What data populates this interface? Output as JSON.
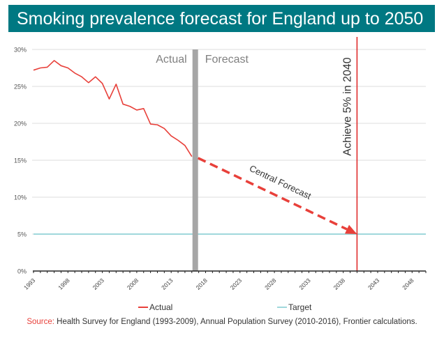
{
  "title": "Smoking prevalence forecast for England up to 2050",
  "colors": {
    "title_bg": "#007882",
    "actual": "#e8403a",
    "target": "#9fd8dc",
    "divider": "#a6a6a6",
    "milestone": "#e02b2b",
    "forecast_arrow": "#e8403a",
    "grid": "#e3e3e3"
  },
  "chart_data": {
    "type": "line",
    "title": "Smoking prevalence forecast for England up to 2050",
    "xlabel": "",
    "ylabel": "",
    "xlim": [
      1993,
      2050
    ],
    "ylim": [
      0,
      30
    ],
    "yticks": [
      0,
      5,
      10,
      15,
      20,
      25,
      30
    ],
    "ytick_labels": [
      "0%",
      "5%",
      "10%",
      "15%",
      "20%",
      "25%",
      "30%"
    ],
    "xticks": [
      1993,
      1998,
      2003,
      2008,
      2013,
      2018,
      2023,
      2028,
      2033,
      2038,
      2043,
      2048
    ],
    "xtick_labels": [
      "1993",
      "1998",
      "2003",
      "2008",
      "2013",
      "2018",
      "2023",
      "2028",
      "2033",
      "2038",
      "2043",
      "2048"
    ],
    "grid": true,
    "legend_position": "bottom",
    "series": [
      {
        "name": "Actual",
        "x": [
          1993,
          1994,
          1995,
          1996,
          1997,
          1998,
          1999,
          2000,
          2001,
          2002,
          2003,
          2004,
          2005,
          2006,
          2007,
          2008,
          2009,
          2010,
          2011,
          2012,
          2013,
          2014,
          2015,
          2016
        ],
        "values": [
          27.2,
          27.5,
          27.6,
          28.5,
          27.8,
          27.5,
          26.8,
          26.3,
          25.5,
          26.3,
          25.4,
          23.3,
          25.3,
          22.6,
          22.3,
          21.8,
          22.0,
          19.9,
          19.8,
          19.3,
          18.3,
          17.7,
          17.0,
          15.5
        ]
      },
      {
        "name": "Target",
        "x": [
          1993,
          2050
        ],
        "values": [
          5,
          5
        ]
      }
    ],
    "forecast": {
      "label": "Central Forecast",
      "from": {
        "x": 2016.5,
        "y": 15.3
      },
      "to": {
        "x": 2040,
        "y": 5
      }
    },
    "annotations": {
      "actual_label": "Actual",
      "forecast_label": "Forecast",
      "divider_year": 2016.5,
      "milestone_year": 2040,
      "milestone_label": "Achieve 5% in 2040"
    }
  },
  "legend": {
    "actual": "Actual",
    "target": "Target"
  },
  "source": {
    "label": "Source:",
    "text": " Health Survey for England (1993-2009), Annual Population Survey (2010-2016), Frontier calculations."
  }
}
